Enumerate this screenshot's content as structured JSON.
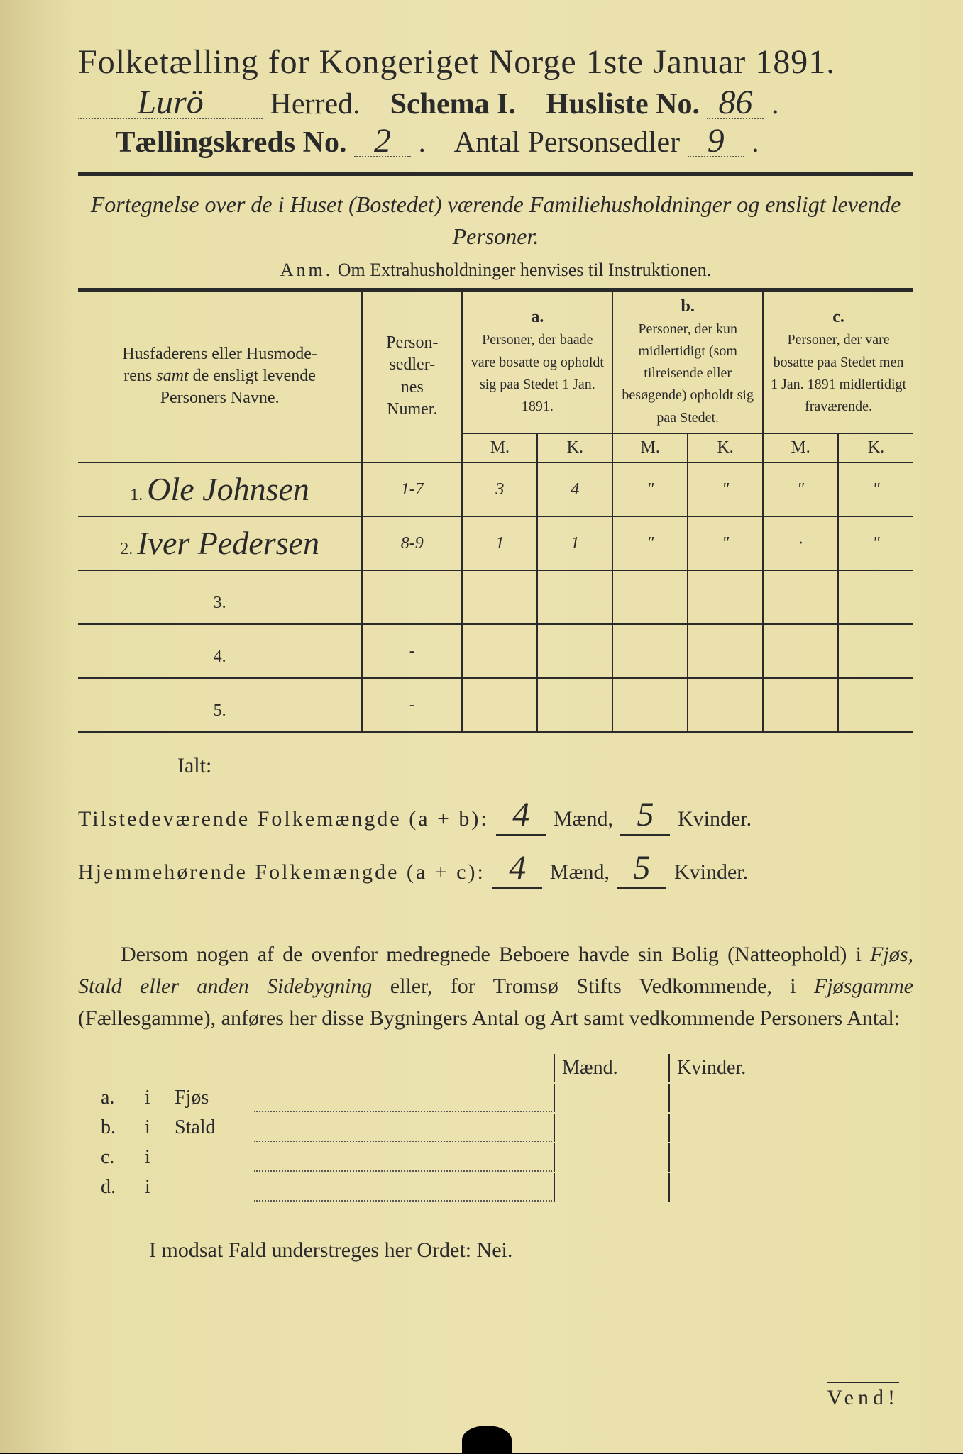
{
  "header": {
    "main_title": "Folketælling for Kongeriget Norge 1ste Januar 1891.",
    "herred_value": "Lurö",
    "herred_label": "Herred.",
    "schema_label": "Schema I.",
    "husliste_label": "Husliste No.",
    "husliste_value": "86",
    "kreds_label": "Tællingskreds No.",
    "kreds_value": "2",
    "antal_label": "Antal Personsedler",
    "antal_value": "9"
  },
  "subtitle": "Fortegnelse over de i Huset (Bostedet) værende Familiehusholdninger og ensligt levende Personer.",
  "anm": {
    "prefix": "Anm.",
    "text": "Om Extrahusholdninger henvises til Instruktionen."
  },
  "table": {
    "col_name": "Husfaderens eller Husmoderens samt de ensligt levende Personers Navne.",
    "col_num": "Person-sedler-nes Numer.",
    "col_a_label": "a.",
    "col_a_text": "Personer, der baade vare bosatte og opholdt sig paa Stedet 1 Jan. 1891.",
    "col_b_label": "b.",
    "col_b_text": "Personer, der kun midlertidigt (som tilreisende eller besøgende) opholdt sig paa Stedet.",
    "col_c_label": "c.",
    "col_c_text": "Personer, der vare bosatte paa Stedet men 1 Jan. 1891 midlertidigt fraværende.",
    "m_label": "M.",
    "k_label": "K.",
    "rows": [
      {
        "n": "1.",
        "name": "Ole Johnsen",
        "num": "1-7",
        "am": "3",
        "ak": "4",
        "bm": "\"",
        "bk": "\"",
        "cm": "\"",
        "ck": "\""
      },
      {
        "n": "2.",
        "name": "Iver Pedersen",
        "num": "8-9",
        "am": "1",
        "ak": "1",
        "bm": "\"",
        "bk": "\"",
        "cm": "·",
        "ck": "\""
      },
      {
        "n": "3.",
        "name": "",
        "num": "",
        "am": "",
        "ak": "",
        "bm": "",
        "bk": "",
        "cm": "",
        "ck": ""
      },
      {
        "n": "4.",
        "name": "",
        "num": "-",
        "am": "",
        "ak": "",
        "bm": "",
        "bk": "",
        "cm": "",
        "ck": ""
      },
      {
        "n": "5.",
        "name": "",
        "num": "-",
        "am": "",
        "ak": "",
        "bm": "",
        "bk": "",
        "cm": "",
        "ck": ""
      }
    ]
  },
  "ialt": {
    "title": "Ialt:",
    "row1_label": "Tilstedeværende Folkemængde (a + b):",
    "row1_m": "4",
    "row1_k": "5",
    "row2_label": "Hjemmehørende Folkemængde (a + c):",
    "row2_m": "4",
    "row2_k": "5",
    "maend": "Mænd,",
    "kvinder": "Kvinder."
  },
  "paragraph": "Dersom nogen af de ovenfor medregnede Beboere havde sin Bolig (Natteophold) i Fjøs, Stald eller anden Sidebygning eller, for Tromsø Stifts Vedkommende, i Fjøsgamme (Fællesgamme), anføres her disse Bygningers Antal og Art samt vedkommende Personers Antal:",
  "outbuildings": {
    "head_m": "Mænd.",
    "head_k": "Kvinder.",
    "rows": [
      {
        "label": "a.",
        "i": "i",
        "type": "Fjøs"
      },
      {
        "label": "b.",
        "i": "i",
        "type": "Stald"
      },
      {
        "label": "c.",
        "i": "i",
        "type": ""
      },
      {
        "label": "d.",
        "i": "i",
        "type": ""
      }
    ]
  },
  "nei_line": "I modsat Fald understreges her Ordet: Nei.",
  "vend": "Vend!",
  "colors": {
    "paper": "#e8dfa8",
    "ink": "#2a2a2a",
    "dotted": "#555555"
  }
}
